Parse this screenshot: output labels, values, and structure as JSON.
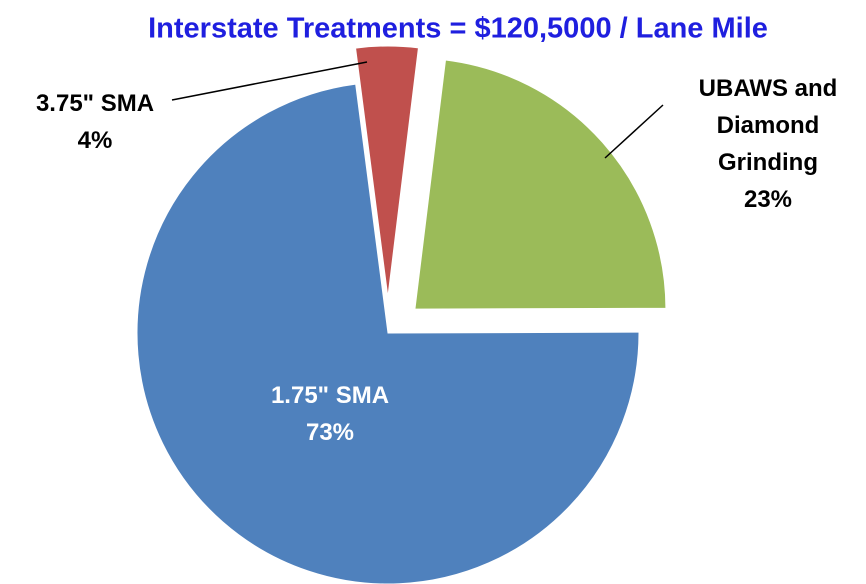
{
  "chart_data": {
    "type": "pie",
    "title": "Interstate Treatments = $120,5000 / Lane Mile",
    "categories": [
      "UBAWS and Diamond Grinding",
      "1.75\" SMA",
      "3.75\" SMA"
    ],
    "values": [
      23,
      73,
      4
    ],
    "value_labels": [
      "23%",
      "73%",
      "4%"
    ],
    "colors": [
      "#9bbb59",
      "#4f81bd",
      "#c0504d"
    ]
  }
}
